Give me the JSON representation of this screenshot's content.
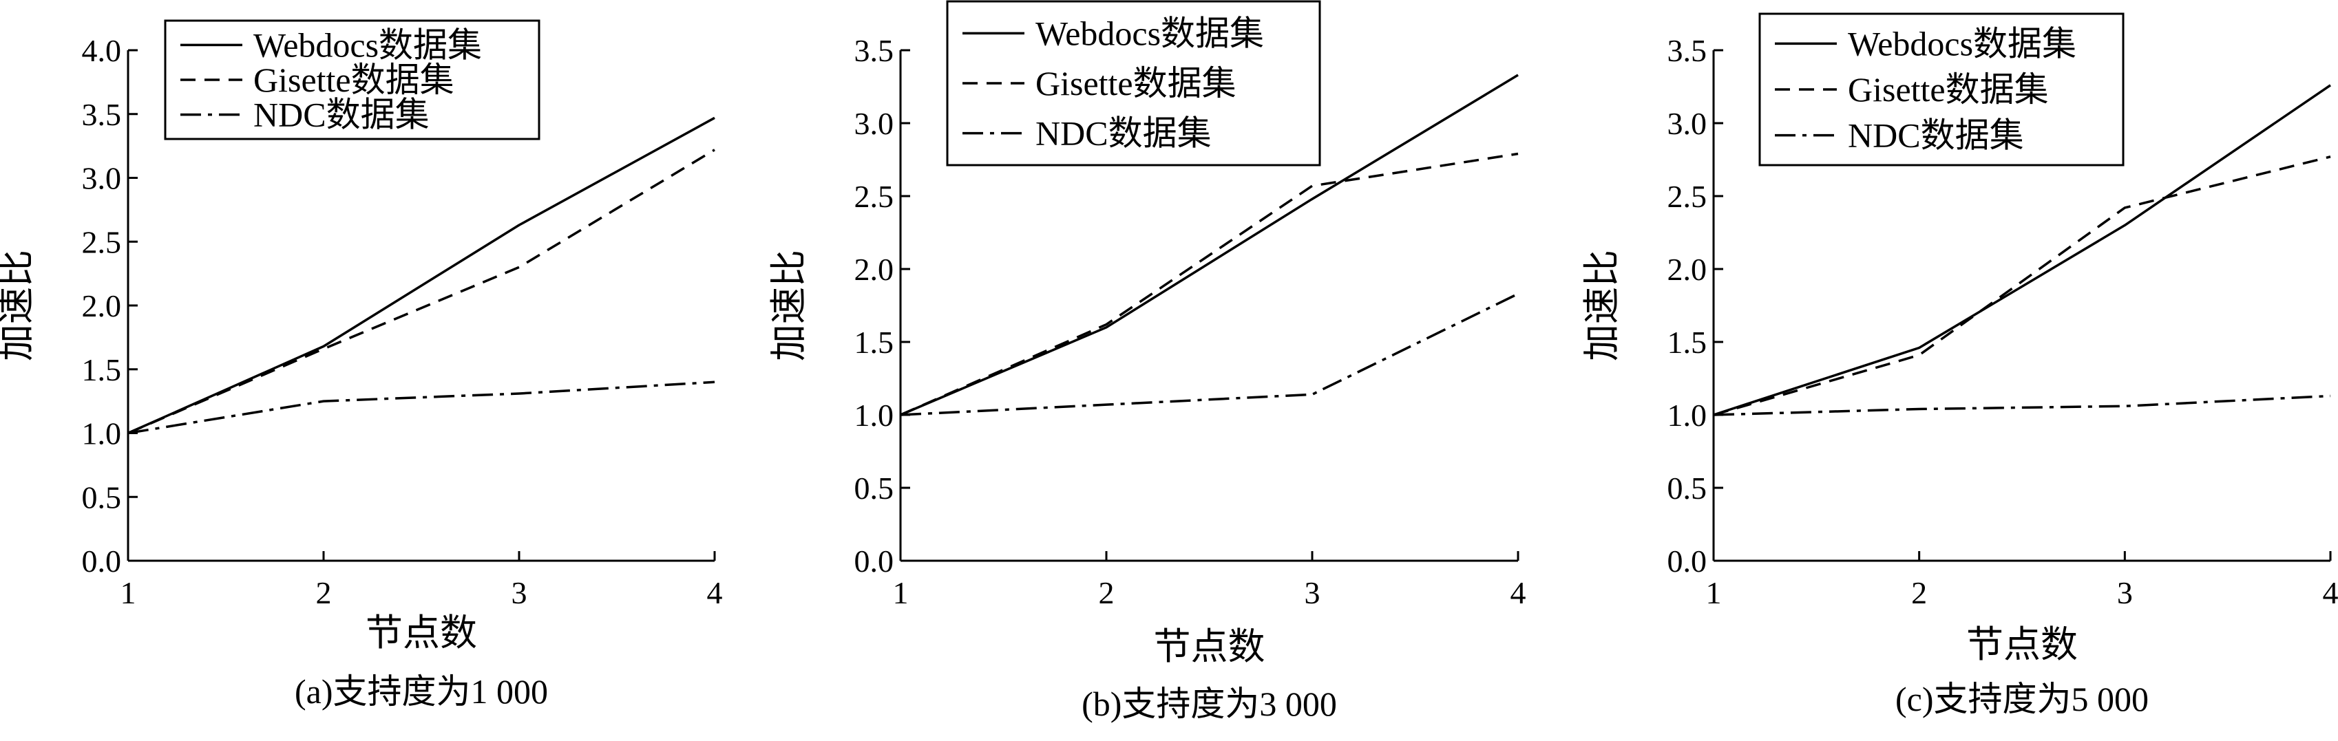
{
  "chart_data": [
    {
      "type": "line",
      "title": "",
      "caption": "(a)支持度为1 000",
      "xlabel": "节点数",
      "ylabel": "加速比",
      "x": [
        1,
        2,
        3,
        4
      ],
      "xticks": [
        "1",
        "2",
        "3",
        "4"
      ],
      "yticks": [
        "0.0",
        "0.5",
        "1.0",
        "1.5",
        "2.0",
        "2.5",
        "3.0",
        "3.5",
        "4.0"
      ],
      "xlim": [
        1,
        4
      ],
      "ylim": [
        0,
        4.0
      ],
      "grid": false,
      "legend_position": "top-left",
      "series": [
        {
          "name": "Webdocs数据集",
          "style": "solid",
          "values": [
            1.0,
            1.68,
            2.63,
            3.47
          ]
        },
        {
          "name": "Gisette数据集",
          "style": "dashed",
          "values": [
            1.0,
            1.66,
            2.3,
            3.22
          ]
        },
        {
          "name": "NDC数据集",
          "style": "dashdot",
          "values": [
            1.0,
            1.25,
            1.31,
            1.4
          ]
        }
      ]
    },
    {
      "type": "line",
      "title": "",
      "caption": "(b)支持度为3 000",
      "xlabel": "节点数",
      "ylabel": "加速比",
      "x": [
        1,
        2,
        3,
        4
      ],
      "xticks": [
        "1",
        "2",
        "3",
        "4"
      ],
      "yticks": [
        "0.0",
        "0.5",
        "1.0",
        "1.5",
        "2.0",
        "2.5",
        "3.0",
        "3.5"
      ],
      "xlim": [
        1,
        4
      ],
      "ylim": [
        0,
        3.5
      ],
      "grid": false,
      "legend_position": "top-left",
      "series": [
        {
          "name": "Webdocs数据集",
          "style": "solid",
          "values": [
            1.0,
            1.6,
            2.48,
            3.33
          ]
        },
        {
          "name": "Gisette数据集",
          "style": "dashed",
          "values": [
            1.0,
            1.62,
            2.57,
            2.79
          ]
        },
        {
          "name": "NDC数据集",
          "style": "dashdot",
          "values": [
            1.0,
            1.07,
            1.14,
            1.83
          ]
        }
      ]
    },
    {
      "type": "line",
      "title": "",
      "caption": "(c)支持度为5 000",
      "xlabel": "节点数",
      "ylabel": "加速比",
      "x": [
        1,
        2,
        3,
        4
      ],
      "xticks": [
        "1",
        "2",
        "3",
        "4"
      ],
      "yticks": [
        "0.0",
        "0.5",
        "1.0",
        "1.5",
        "2.0",
        "2.5",
        "3.0",
        "3.5"
      ],
      "xlim": [
        1,
        4
      ],
      "ylim": [
        0,
        3.5
      ],
      "grid": false,
      "legend_position": "top-left",
      "series": [
        {
          "name": "Webdocs数据集",
          "style": "solid",
          "values": [
            1.0,
            1.46,
            2.3,
            3.26
          ]
        },
        {
          "name": "Gisette数据集",
          "style": "dashed",
          "values": [
            1.0,
            1.41,
            2.42,
            2.77
          ]
        },
        {
          "name": "NDC数据集",
          "style": "dashdot",
          "values": [
            1.0,
            1.04,
            1.06,
            1.13
          ]
        }
      ]
    }
  ]
}
